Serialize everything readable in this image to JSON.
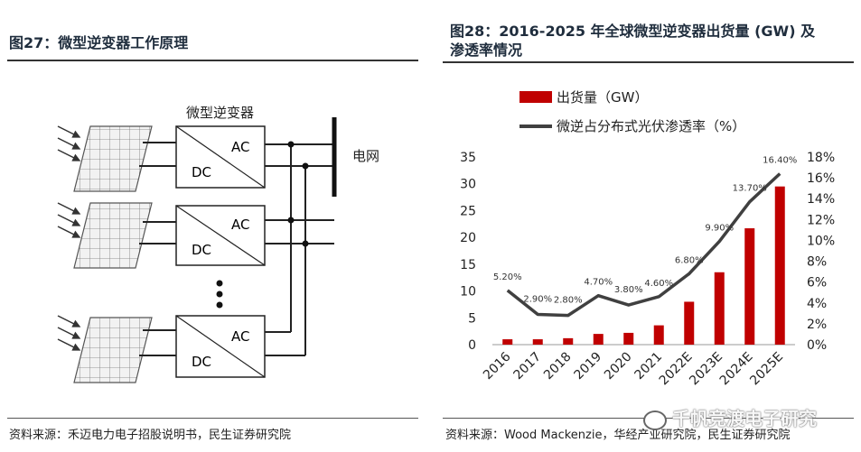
{
  "left_panel": {
    "title": "图27：微型逆变器工作原理",
    "diagram": {
      "inverter_label": "微型逆变器",
      "ac_label": "AC",
      "dc_label": "DC",
      "grid_label": "电网"
    },
    "source": "资料来源：禾迈电力电子招股说明书，民生证券研究院"
  },
  "right_panel": {
    "title_line1": "图28：2016-2025 年全球微型逆变器出货量 (GW) 及",
    "title_line2": "渗透率情况",
    "source": "资料来源：Wood Mackenzie，华经产业研究院，民生证券研究院"
  },
  "watermark": "千帆竞渡电子研究",
  "colors": {
    "bar": "#c00000",
    "line": "#404040",
    "title": "#1f2d3d"
  },
  "chart_data": {
    "type": "bar",
    "categories": [
      "2016",
      "2017",
      "2018",
      "2019",
      "2020",
      "2021",
      "2022E",
      "2023E",
      "2024E",
      "2025E"
    ],
    "series": [
      {
        "name": "出货量（GW）",
        "type": "bar",
        "axis": "left",
        "values": [
          1.0,
          1.0,
          1.2,
          2.0,
          2.2,
          3.6,
          8.0,
          13.5,
          21.7,
          29.5
        ]
      },
      {
        "name": "微逆占分布式光伏渗透率（%）",
        "type": "line",
        "axis": "right",
        "values": [
          5.2,
          2.9,
          2.8,
          4.7,
          3.8,
          4.6,
          6.8,
          9.9,
          13.7,
          16.4
        ],
        "labels": [
          "5.20%",
          "2.90%",
          "2.80%",
          "4.70%",
          "3.80%",
          "4.60%",
          "6.80%",
          "9.90%",
          "13.70%",
          "16.40%"
        ]
      }
    ],
    "y_left": {
      "min": 0,
      "max": 35,
      "ticks": [
        "0",
        "5",
        "10",
        "15",
        "20",
        "25",
        "30",
        "35"
      ]
    },
    "y_right": {
      "min": 0,
      "max": 18,
      "ticks": [
        "0%",
        "2%",
        "4%",
        "6%",
        "8%",
        "10%",
        "12%",
        "14%",
        "16%",
        "18%"
      ]
    },
    "legend_position": "top",
    "grid": false
  }
}
